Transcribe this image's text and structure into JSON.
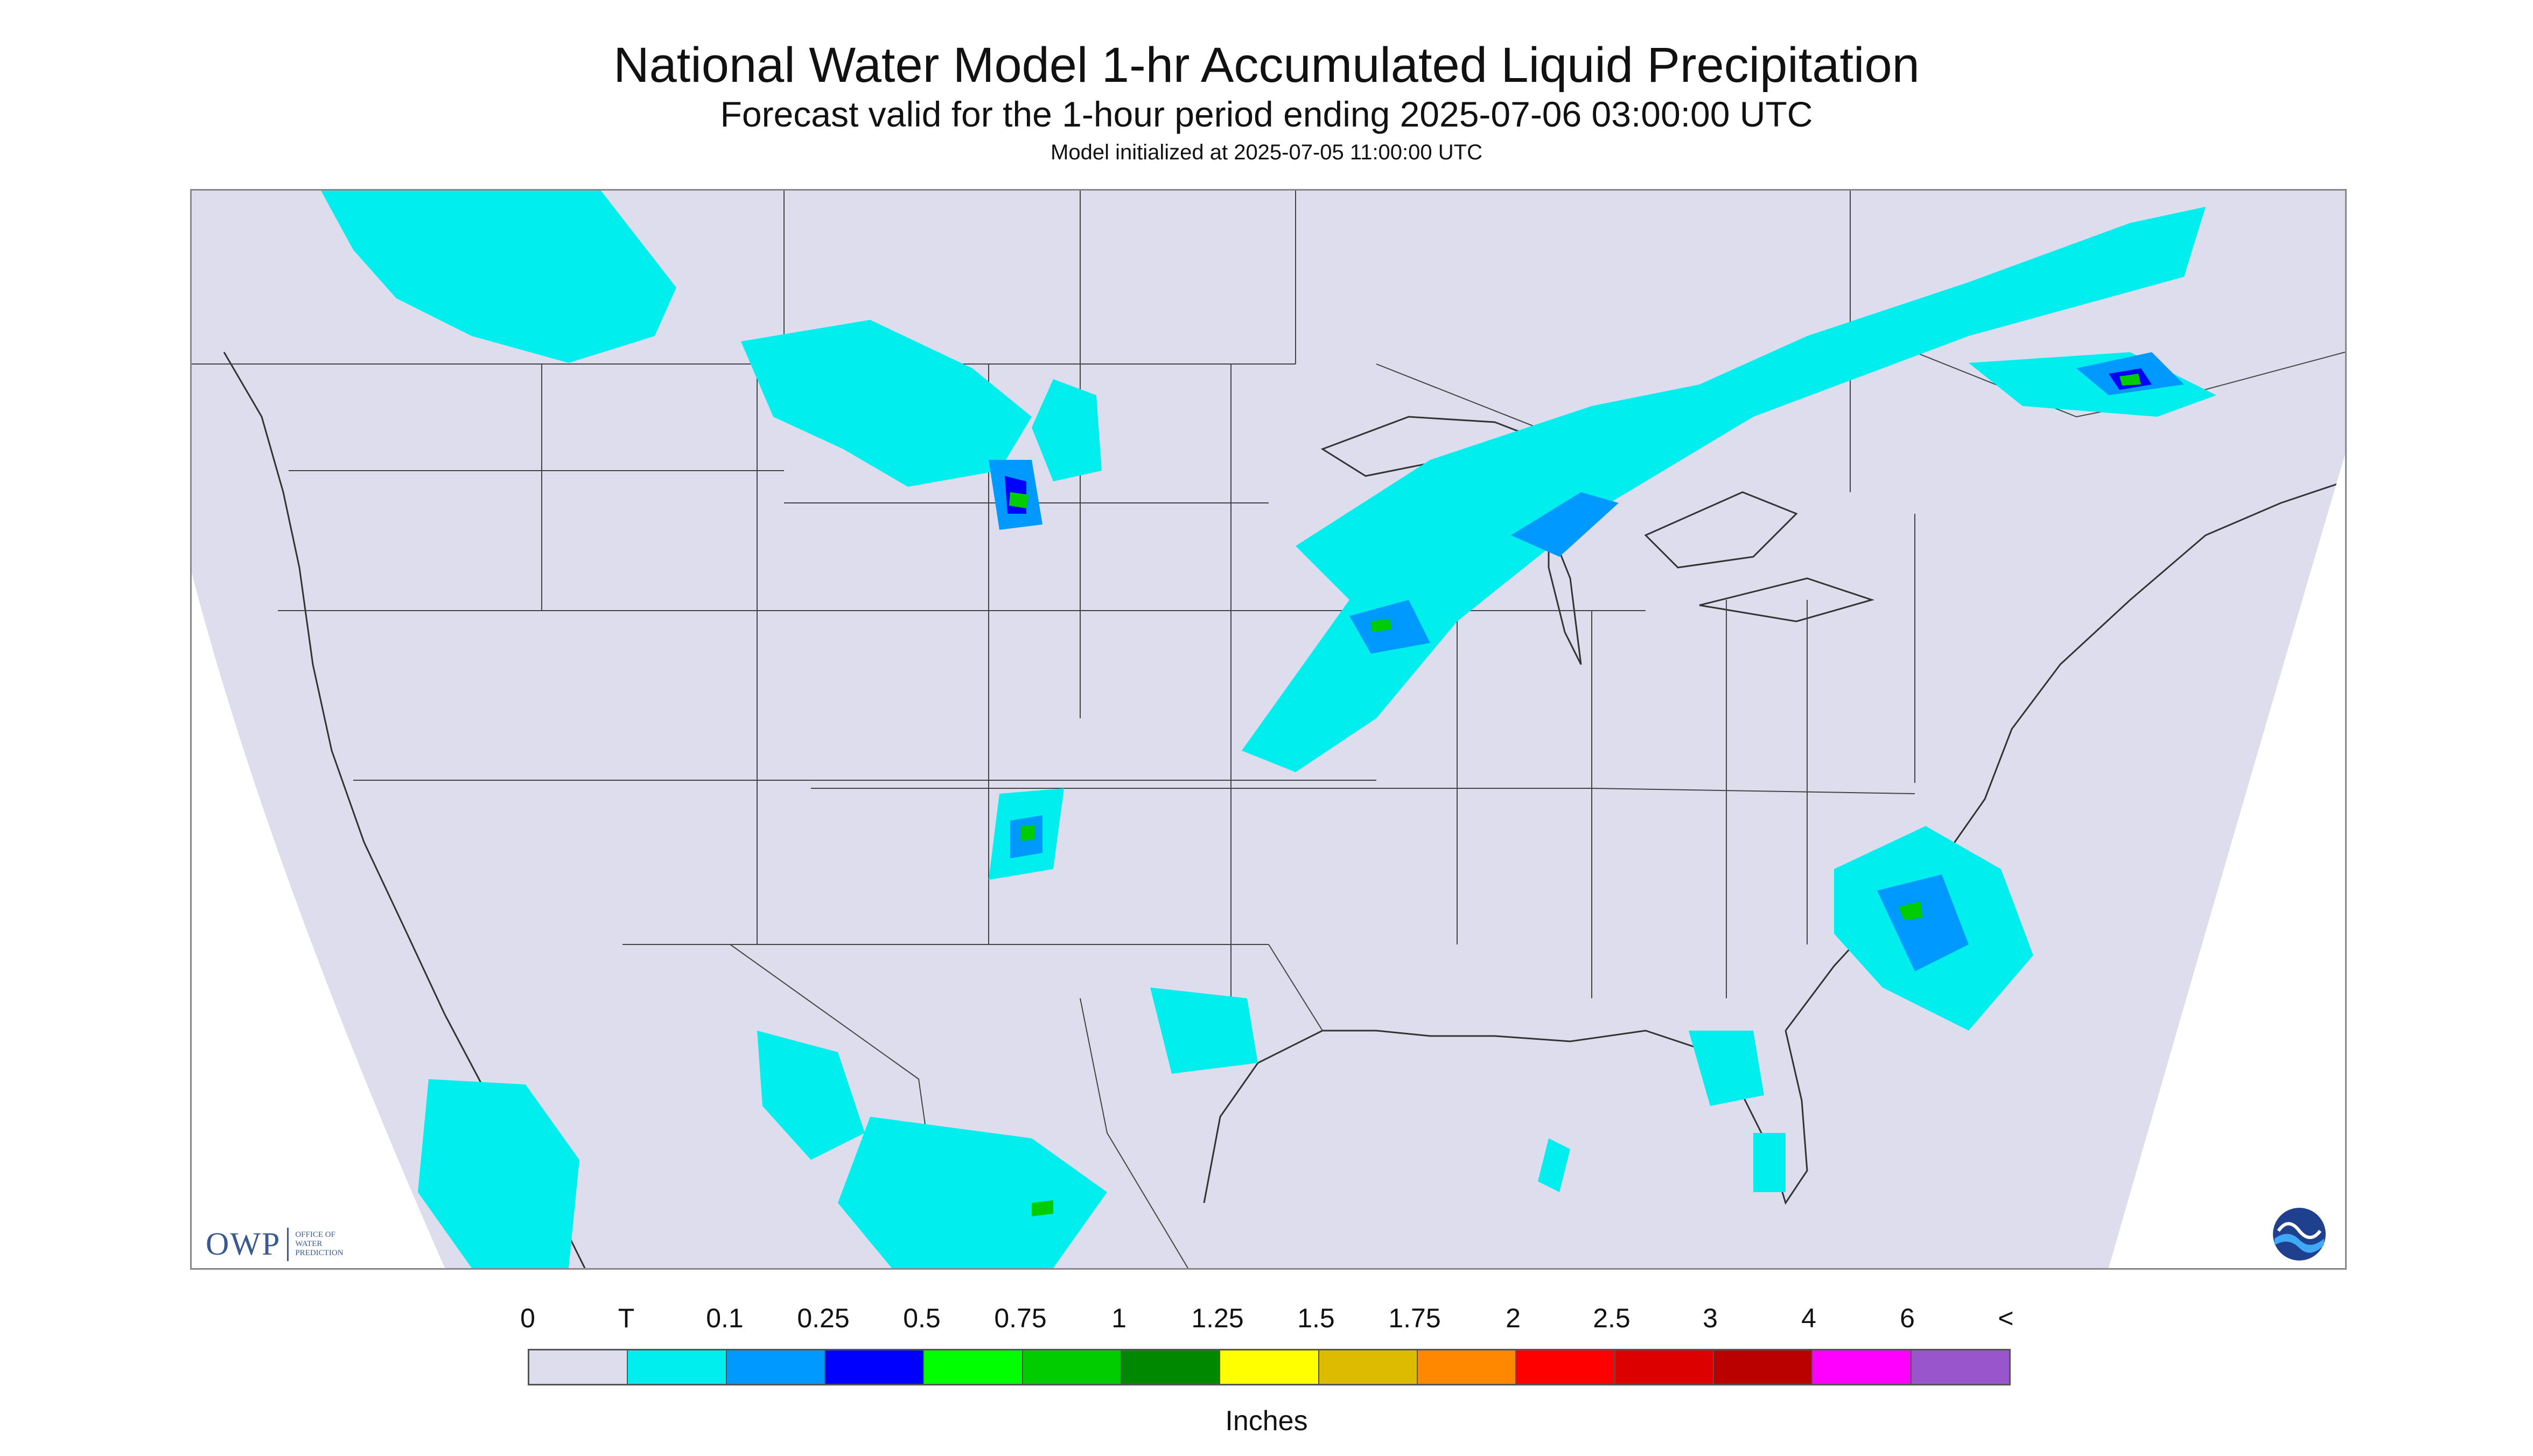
{
  "title": "National Water Model 1-hr Accumulated Liquid Precipitation",
  "subtitle": "Forecast valid for the 1-hour period ending 2025-07-06 03:00:00 UTC",
  "init_line": "Model initialized at 2025-07-05 11:00:00 UTC",
  "logos": {
    "owp_abbrev": "OWP",
    "owp_full": [
      "OFFICE OF",
      "WATER",
      "PREDICTION"
    ],
    "noaa_text": "NOAA"
  },
  "map": {
    "background_color": "#ddddee",
    "outside_domain_color": "#ffffff",
    "border_color": "#333333",
    "precip_trace_color": "#00eeee",
    "precip_light_color": "#0099ff",
    "precip_moderate_color": "#0000ff",
    "precip_heavy_color": "#00cc00"
  },
  "legend": {
    "labels": [
      "0",
      "T",
      "0.1",
      "0.25",
      "0.5",
      "0.75",
      "1",
      "1.25",
      "1.5",
      "1.75",
      "2",
      "2.5",
      "3",
      "4",
      "6",
      "<"
    ],
    "colors": [
      "#ddddee",
      "#00eeee",
      "#0099ff",
      "#0000ff",
      "#00ff00",
      "#00cc00",
      "#008800",
      "#ffff00",
      "#ddbb00",
      "#ff8800",
      "#ff0000",
      "#dd0000",
      "#bb0000",
      "#ff00ff",
      "#9955cc"
    ],
    "units_label": "Inches"
  }
}
